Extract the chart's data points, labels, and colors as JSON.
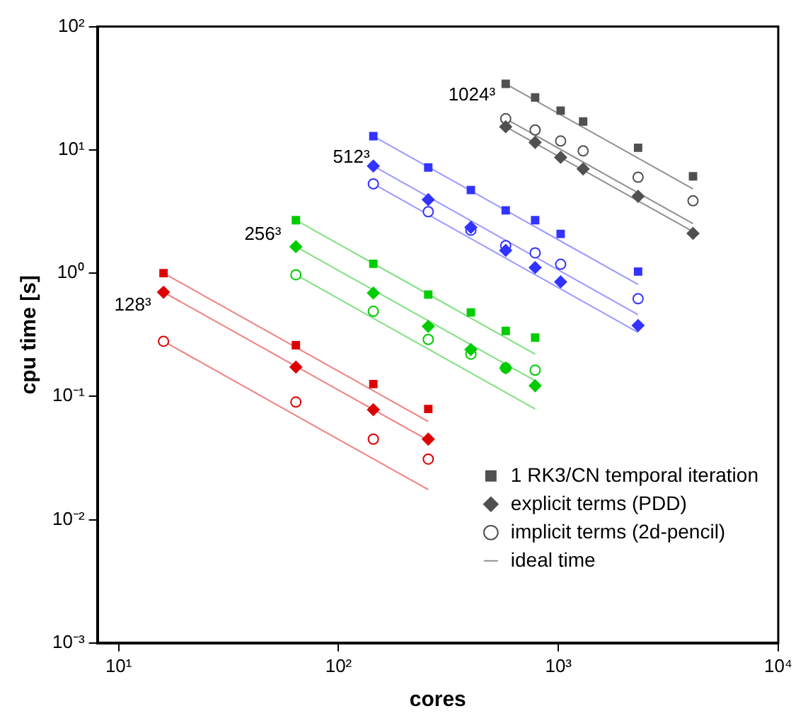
{
  "chart_data": {
    "type": "scatter",
    "xlabel": "cores",
    "ylabel": "cpu time [s]",
    "log": "xy",
    "grid": false,
    "legend": "bottom right",
    "xlim": [
      8,
      10000
    ],
    "ylim": [
      0.001,
      100
    ],
    "xticks": [
      {
        "value": 10,
        "label": "10¹"
      },
      {
        "value": 100,
        "label": "10²"
      },
      {
        "value": 1000,
        "label": "10³"
      },
      {
        "value": 10000,
        "label": "10⁴"
      }
    ],
    "yticks": [
      {
        "value": 0.001,
        "label": "10⁻³"
      },
      {
        "value": 0.01,
        "label": "10⁻²"
      },
      {
        "value": 0.1,
        "label": "10⁻¹"
      },
      {
        "value": 1,
        "label": "10⁰"
      },
      {
        "value": 10,
        "label": "10¹"
      },
      {
        "value": 100,
        "label": "10²"
      }
    ],
    "annotations": [
      "128³",
      "256³",
      "512³",
      "1024³"
    ],
    "series": [
      {
        "type": "scatter",
        "marker": "square",
        "color": "#dd0000",
        "x": [
          16,
          64,
          144,
          256
        ],
        "values": [
          1.0,
          0.26,
          0.126,
          0.079
        ]
      },
      {
        "type": "scatter",
        "marker": "diamond",
        "color": "#dd0000",
        "x": [
          16,
          64,
          144,
          256
        ],
        "values": [
          0.7,
          0.173,
          0.078,
          0.045
        ]
      },
      {
        "type": "scatter",
        "marker": "circle",
        "color": "#dd0000",
        "x": [
          16,
          64,
          144,
          256
        ],
        "values": [
          0.28,
          0.09,
          0.045,
          0.031
        ]
      },
      {
        "type": "line",
        "marker": "none",
        "color": "#f08080",
        "x": [
          16,
          256
        ],
        "values": [
          1.0,
          0.0625
        ]
      },
      {
        "type": "line",
        "marker": "none",
        "color": "#f08080",
        "x": [
          16,
          256
        ],
        "values": [
          0.7,
          0.044
        ]
      },
      {
        "type": "line",
        "marker": "none",
        "color": "#f08080",
        "x": [
          16,
          256
        ],
        "values": [
          0.28,
          0.0175
        ]
      },
      {
        "type": "scatter",
        "marker": "square",
        "color": "#00cc00",
        "x": [
          64,
          144,
          256,
          400,
          576,
          784
        ],
        "values": [
          2.69,
          1.19,
          0.67,
          0.48,
          0.34,
          0.3
        ]
      },
      {
        "type": "scatter",
        "marker": "diamond",
        "color": "#00cc00",
        "x": [
          64,
          144,
          256,
          400,
          576,
          784
        ],
        "values": [
          1.64,
          0.69,
          0.37,
          0.24,
          0.17,
          0.122
        ]
      },
      {
        "type": "scatter",
        "marker": "circle",
        "color": "#00cc00",
        "x": [
          64,
          144,
          256,
          400,
          576,
          784
        ],
        "values": [
          0.97,
          0.49,
          0.29,
          0.22,
          0.17,
          0.163
        ]
      },
      {
        "type": "line",
        "marker": "none",
        "color": "#80e080",
        "x": [
          64,
          784
        ],
        "values": [
          2.69,
          0.22
        ]
      },
      {
        "type": "line",
        "marker": "none",
        "color": "#80e080",
        "x": [
          64,
          784
        ],
        "values": [
          1.64,
          0.134
        ]
      },
      {
        "type": "line",
        "marker": "none",
        "color": "#80e080",
        "x": [
          64,
          784
        ],
        "values": [
          0.97,
          0.079
        ]
      },
      {
        "type": "scatter",
        "marker": "square",
        "color": "#3333ff",
        "x": [
          144,
          256,
          400,
          576,
          784,
          1024,
          2304
        ],
        "values": [
          12.9,
          7.2,
          4.72,
          3.23,
          2.69,
          2.08,
          1.03
        ]
      },
      {
        "type": "scatter",
        "marker": "diamond",
        "color": "#3333ff",
        "x": [
          144,
          256,
          400,
          576,
          784,
          1024,
          2304
        ],
        "values": [
          7.4,
          3.95,
          2.35,
          1.53,
          1.11,
          0.85,
          0.376
        ]
      },
      {
        "type": "scatter",
        "marker": "circle",
        "color": "#3333ff",
        "x": [
          144,
          256,
          400,
          576,
          784,
          1024,
          2304
        ],
        "values": [
          5.3,
          3.15,
          2.23,
          1.67,
          1.46,
          1.18,
          0.62
        ]
      },
      {
        "type": "line",
        "marker": "none",
        "color": "#9999ff",
        "x": [
          144,
          2304
        ],
        "values": [
          12.9,
          0.81
        ]
      },
      {
        "type": "line",
        "marker": "none",
        "color": "#9999ff",
        "x": [
          144,
          2304
        ],
        "values": [
          7.4,
          0.46
        ]
      },
      {
        "type": "line",
        "marker": "none",
        "color": "#9999ff",
        "x": [
          144,
          2304
        ],
        "values": [
          5.3,
          0.33
        ]
      },
      {
        "name": "1 RK3/CN temporal iteration",
        "type": "scatter",
        "marker": "square",
        "color": "#505050",
        "x": [
          576,
          784,
          1024,
          1296,
          2304,
          4096
        ],
        "values": [
          34.3,
          26.6,
          20.8,
          17.0,
          10.4,
          6.1
        ]
      },
      {
        "name": "explicit terms (PDD)",
        "type": "scatter",
        "marker": "diamond",
        "color": "#505050",
        "x": [
          576,
          784,
          1024,
          1296,
          2304,
          4096
        ],
        "values": [
          15.4,
          11.5,
          8.7,
          7.0,
          4.2,
          2.1
        ]
      },
      {
        "name": "implicit terms (2d-pencil)",
        "type": "scatter",
        "marker": "circle",
        "color": "#505050",
        "x": [
          576,
          784,
          1024,
          1296,
          2304,
          4096
        ],
        "values": [
          17.9,
          14.5,
          11.8,
          9.8,
          6.0,
          3.86
        ]
      },
      {
        "name": "ideal time",
        "type": "line",
        "marker": "none",
        "color": "#909090",
        "x": [
          576,
          4096
        ],
        "values": [
          34.3,
          4.82
        ]
      },
      {
        "type": "line",
        "marker": "none",
        "color": "#909090",
        "x": [
          576,
          4096
        ],
        "values": [
          15.4,
          2.17
        ]
      },
      {
        "type": "line",
        "marker": "none",
        "color": "#909090",
        "x": [
          576,
          4096
        ],
        "values": [
          17.9,
          2.52
        ]
      }
    ]
  }
}
